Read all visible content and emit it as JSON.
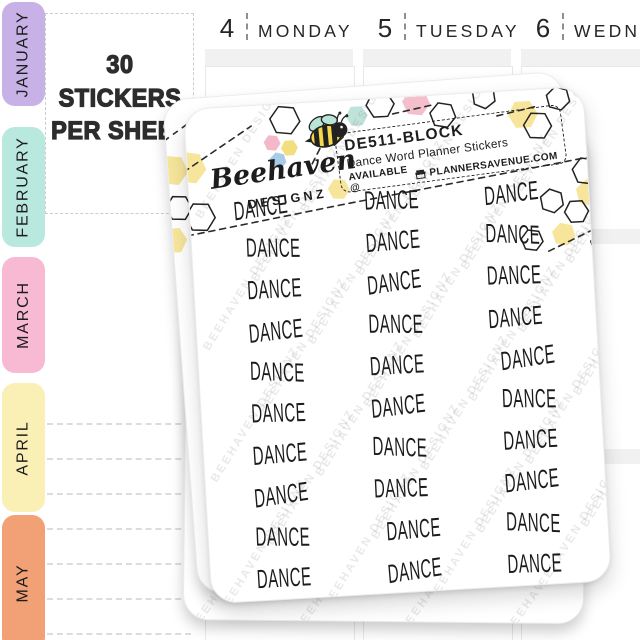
{
  "sidebar_tabs": [
    {
      "label": "JANUARY",
      "color": "#c8b1e6"
    },
    {
      "label": "FEBRUARY",
      "color": "#b9e8df"
    },
    {
      "label": "MARCH",
      "color": "#f8b9d2"
    },
    {
      "label": "APRIL",
      "color": "#faefb4"
    },
    {
      "label": "MAY",
      "color": "#f1a175"
    }
  ],
  "promo": {
    "line1": "30 STICKERS",
    "line2": "PER SHEET"
  },
  "planner": {
    "days": [
      {
        "num": "4",
        "name": "MONDAY"
      },
      {
        "num": "5",
        "name": "TUESDAY"
      },
      {
        "num": "6",
        "name": "WEDNESDAY"
      }
    ]
  },
  "sheet": {
    "brand": {
      "script": "Beehaven",
      "caps": "DESIGNZ"
    },
    "info": {
      "sku": "DE511-BLOCK",
      "title": "Dance Word Planner Stickers",
      "availability_prefix": "AVAILABLE @",
      "site": "PLANNERSAVENUE.COM"
    },
    "watermark": "BEEHAVEN DESIGNZ",
    "stickers": {
      "word": "DANCE",
      "count": 30,
      "columns": 3
    }
  },
  "colors": {
    "hex_yellow": "#f6e59b",
    "hex_pink": "#f3bfcb",
    "hex_teal": "#bfe3da",
    "bee_body": "#f6d94a",
    "bee_wing": "#b9e4d8",
    "logo_pink": "#f4b8c8",
    "logo_yellow": "#f2de7e",
    "logo_blue": "#a9cbe8",
    "ink": "#222222",
    "gray_bar": "#f1f1f1"
  }
}
